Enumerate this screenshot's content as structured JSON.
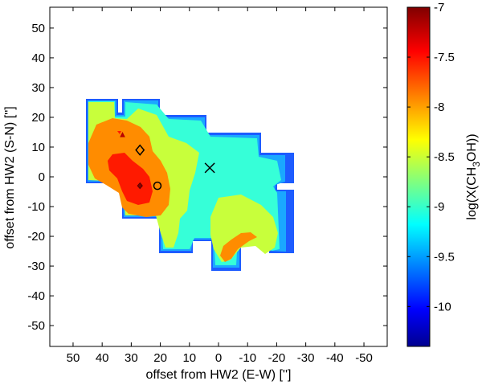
{
  "chart_data": {
    "type": "heatmap",
    "title": "",
    "xlabel": "offset from HW2 (E-W) ['']",
    "ylabel": "offset from HW2 (S-N) ['']",
    "xlim": [
      58,
      -58
    ],
    "ylim": [
      -57,
      57
    ],
    "x_ticks": [
      50,
      40,
      30,
      20,
      10,
      0,
      -10,
      -20,
      -30,
      -40,
      -50
    ],
    "y_ticks": [
      50,
      40,
      30,
      20,
      10,
      0,
      -10,
      -20,
      -30,
      -40,
      -50
    ],
    "colorbar": {
      "label": "log(X(CH3OH))",
      "label_parts": [
        "log(X(CH",
        "3",
        "OH))"
      ],
      "range": [
        -10.4,
        -7
      ],
      "ticks": [
        -7,
        -7.5,
        -8,
        -8.5,
        -9,
        -9.5,
        -10
      ],
      "colormap": "jet"
    },
    "levels": [
      {
        "value": -10.0,
        "color": "#1d5cff"
      },
      {
        "value": -9.5,
        "color": "#1aa8ff"
      },
      {
        "value": -9.0,
        "color": "#36ffd8"
      },
      {
        "value": -8.5,
        "color": "#c8ff3b"
      },
      {
        "value": -8.0,
        "color": "#ff8c00"
      },
      {
        "value": -7.5,
        "color": "#ff1a00"
      }
    ],
    "markers": [
      {
        "symbol": "cross",
        "x": 3,
        "y": 3
      },
      {
        "symbol": "diamond",
        "x": 27,
        "y": 9
      },
      {
        "symbol": "circle",
        "x": 21,
        "y": -3
      },
      {
        "symbol": "diamond-filled",
        "x": 27,
        "y": -3
      },
      {
        "symbol": "star",
        "x": 33,
        "y": 14
      }
    ]
  }
}
